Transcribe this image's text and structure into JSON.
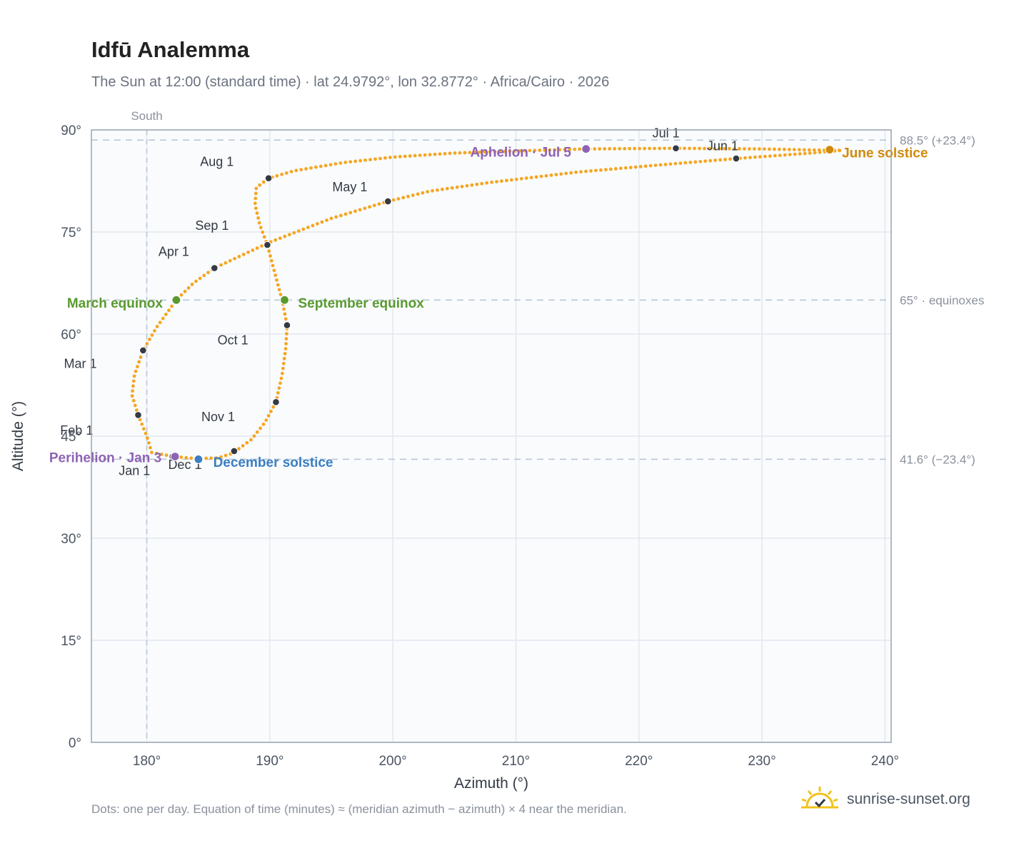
{
  "header": {
    "title": "Idfū Analemma",
    "subtitle": "The Sun at 12:00 (standard time) · lat 24.9792°, lon 32.8772° · Africa/Cairo · 2026"
  },
  "footer": {
    "note": "Dots: one per day. Equation of time (minutes) ≈ (meridian azimuth − azimuth) × 4 near the meridian.",
    "brand": "sunrise-sunset.org"
  },
  "colors": {
    "curve": "#f5a623",
    "month_dot": "#333a44",
    "equinox": "#5a9a2e",
    "june_solstice": "#d08a0a",
    "december_solstice": "#3b7ec2",
    "apsis": "#8e63b4",
    "grid": "#e3e8ee",
    "axis": "#9aa4b2",
    "plot_bg": "#f9fbfd"
  },
  "chart_data": {
    "type": "scatter",
    "xlabel": "Azimuth (°)",
    "ylabel": "Altitude (°)",
    "xlim": [
      175.5,
      240.5
    ],
    "ylim": [
      0,
      90
    ],
    "xticks": [
      180,
      190,
      200,
      210,
      220,
      230,
      240
    ],
    "xtick_labels": [
      "180°",
      "190°",
      "200°",
      "210°",
      "220°",
      "230°",
      "240°"
    ],
    "yticks": [
      0,
      15,
      30,
      45,
      60,
      75,
      90
    ],
    "ytick_labels": [
      "0°",
      "15°",
      "30°",
      "45°",
      "60°",
      "75°",
      "90°"
    ],
    "grid": true,
    "meridian": {
      "azimuth": 180,
      "label": "South"
    },
    "reference_lines": [
      {
        "altitude": 88.5,
        "label": "88.5° (+23.4°)"
      },
      {
        "altitude": 65.0,
        "label": "65° · equinoxes"
      },
      {
        "altitude": 41.6,
        "label": "41.6° (−23.4°)"
      }
    ],
    "path_keypoints": [
      {
        "x": 180.4,
        "y": 42.6
      },
      {
        "x": 182.2,
        "y": 42.0
      },
      {
        "x": 184.0,
        "y": 41.7
      },
      {
        "x": 185.8,
        "y": 41.8
      },
      {
        "x": 187.0,
        "y": 42.5
      },
      {
        "x": 188.5,
        "y": 44.5
      },
      {
        "x": 189.6,
        "y": 47.0
      },
      {
        "x": 190.5,
        "y": 50.0
      },
      {
        "x": 191.0,
        "y": 54.0
      },
      {
        "x": 191.3,
        "y": 58.0
      },
      {
        "x": 191.4,
        "y": 61.3
      },
      {
        "x": 191.0,
        "y": 65.0
      },
      {
        "x": 190.4,
        "y": 69.0
      },
      {
        "x": 189.8,
        "y": 73.1
      },
      {
        "x": 189.2,
        "y": 76.0
      },
      {
        "x": 188.8,
        "y": 79.0
      },
      {
        "x": 188.9,
        "y": 81.5
      },
      {
        "x": 189.9,
        "y": 82.9
      },
      {
        "x": 192.0,
        "y": 84.0
      },
      {
        "x": 196.0,
        "y": 85.2
      },
      {
        "x": 200.0,
        "y": 86.0
      },
      {
        "x": 205.0,
        "y": 86.6
      },
      {
        "x": 210.0,
        "y": 86.9
      },
      {
        "x": 215.7,
        "y": 87.2
      },
      {
        "x": 223.0,
        "y": 87.3
      },
      {
        "x": 230.0,
        "y": 87.2
      },
      {
        "x": 235.5,
        "y": 87.0
      },
      {
        "x": 236.5,
        "y": 87.0
      },
      {
        "x": 234.0,
        "y": 86.6
      },
      {
        "x": 228.0,
        "y": 85.8
      },
      {
        "x": 222.0,
        "y": 84.9
      },
      {
        "x": 215.0,
        "y": 83.8
      },
      {
        "x": 208.0,
        "y": 82.3
      },
      {
        "x": 203.0,
        "y": 81.0
      },
      {
        "x": 199.6,
        "y": 79.5
      },
      {
        "x": 195.0,
        "y": 77.0
      },
      {
        "x": 190.0,
        "y": 73.5
      },
      {
        "x": 185.5,
        "y": 69.7
      },
      {
        "x": 183.8,
        "y": 67.5
      },
      {
        "x": 182.4,
        "y": 65.0
      },
      {
        "x": 180.8,
        "y": 61.0
      },
      {
        "x": 179.7,
        "y": 57.6
      },
      {
        "x": 179.0,
        "y": 54.0
      },
      {
        "x": 178.8,
        "y": 51.0
      },
      {
        "x": 179.3,
        "y": 48.1
      },
      {
        "x": 180.0,
        "y": 45.0
      },
      {
        "x": 180.4,
        "y": 42.6
      }
    ],
    "month_markers": [
      {
        "label": "Jan 1",
        "x": 182.1,
        "y": 42.0,
        "lx": 179,
        "ly": 39.3
      },
      {
        "label": "Feb 1",
        "x": 179.3,
        "y": 48.1,
        "lx": 174.3,
        "ly": 45.2
      },
      {
        "label": "Mar 1",
        "x": 179.7,
        "y": 57.6,
        "lx": 174.6,
        "ly": 55.0
      },
      {
        "label": "Apr 1",
        "x": 185.5,
        "y": 69.7,
        "lx": 182.2,
        "ly": 71.5
      },
      {
        "label": "May 1",
        "x": 199.6,
        "y": 79.5,
        "lx": 196.5,
        "ly": 81.0
      },
      {
        "label": "Jun 1",
        "x": 227.9,
        "y": 85.8,
        "lx": 226.8,
        "ly": 87.0
      },
      {
        "label": "Jul 1",
        "x": 223.0,
        "y": 87.3,
        "lx": 222.2,
        "ly": 88.9
      },
      {
        "label": "Aug 1",
        "x": 189.9,
        "y": 82.9,
        "lx": 185.7,
        "ly": 84.7
      },
      {
        "label": "Sep 1",
        "x": 189.8,
        "y": 73.1,
        "lx": 185.3,
        "ly": 75.3
      },
      {
        "label": "Oct 1",
        "x": 191.4,
        "y": 61.3,
        "lx": 187.0,
        "ly": 58.5
      },
      {
        "label": "Nov 1",
        "x": 190.5,
        "y": 50.0,
        "lx": 185.8,
        "ly": 47.2
      },
      {
        "label": "Dec 1",
        "x": 187.1,
        "y": 42.8,
        "lx": 183.1,
        "ly": 40.2
      }
    ],
    "events": [
      {
        "label": "March equinox",
        "kind": "equinox",
        "x": 182.4,
        "y": 65.0,
        "anchor": "end",
        "lx": 181.3,
        "ly": 64.5
      },
      {
        "label": "September equinox",
        "kind": "equinox",
        "x": 191.2,
        "y": 65.0,
        "anchor": "start",
        "lx": 192.3,
        "ly": 64.5
      },
      {
        "label": "June solstice",
        "kind": "june_solstice",
        "x": 235.5,
        "y": 87.1,
        "anchor": "start",
        "lx": 236.5,
        "ly": 86.6
      },
      {
        "label": "December solstice",
        "kind": "december_solstice",
        "x": 184.2,
        "y": 41.6,
        "anchor": "start",
        "lx": 185.4,
        "ly": 41.1
      },
      {
        "label": "Perihelion · Jan 3",
        "kind": "apsis",
        "x": 182.3,
        "y": 42.0,
        "anchor": "end",
        "lx": 181.2,
        "ly": 41.8
      },
      {
        "label": "Aphelion · Jul 5",
        "kind": "apsis",
        "x": 215.7,
        "y": 87.2,
        "anchor": "end",
        "lx": 214.5,
        "ly": 86.7
      }
    ]
  }
}
